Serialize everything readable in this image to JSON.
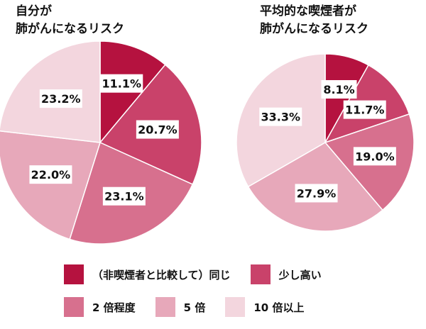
{
  "chart_data": [
    {
      "type": "pie",
      "title": [
        "自分が",
        "肺がんになるリスク"
      ],
      "categories": [
        "（非喫煙者と比較して）同じ",
        "少し高い",
        "2 倍程度",
        "5 倍",
        "10 倍以上"
      ],
      "values": [
        11.1,
        20.7,
        23.1,
        22.0,
        23.2
      ],
      "labels": [
        "11.1%",
        "20.7%",
        "23.1%",
        "22.0%",
        "23.2%"
      ]
    },
    {
      "type": "pie",
      "title": [
        "平均的な喫煙者が",
        "肺がんになるリスク"
      ],
      "categories": [
        "（非喫煙者と比較して）同じ",
        "少し高い",
        "2 倍程度",
        "5 倍",
        "10 倍以上"
      ],
      "values": [
        8.1,
        11.7,
        19.0,
        27.9,
        33.3
      ],
      "labels": [
        "8.1%",
        "11.7%",
        "19.0%",
        "27.9%",
        "33.3%"
      ]
    }
  ],
  "legend": [
    {
      "label": "（非喫煙者と比較して）同じ",
      "color": "#b5123f"
    },
    {
      "label": "少し高い",
      "color": "#c9426a"
    },
    {
      "label": "2 倍程度",
      "color": "#d7708e"
    },
    {
      "label": "5 倍",
      "color": "#e7a8ba"
    },
    {
      "label": "10 倍以上",
      "color": "#f3d6de"
    }
  ]
}
